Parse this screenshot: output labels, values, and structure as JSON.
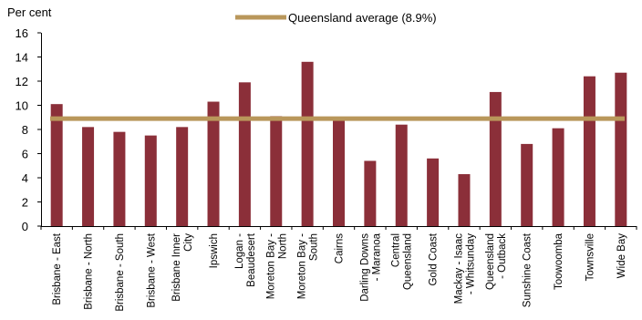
{
  "chart_data": {
    "type": "bar",
    "ylabel": "Per cent",
    "ylim": [
      0,
      16
    ],
    "yticks": [
      0,
      2,
      4,
      6,
      8,
      10,
      12,
      14,
      16
    ],
    "grid": false,
    "legend_position": "top-center",
    "categories": [
      "Brisbane - East",
      "Brisbane - North",
      "Brisbane - South",
      "Brisbane - West",
      "Brisbane Inner City",
      "Ipswich",
      "Logan - Beaudesert",
      "Moreton Bay - North",
      "Moreton Bay - South",
      "Cairns",
      "Darling Downs - Maranoa",
      "Central Queensland",
      "Gold Coast",
      "Mackay - Isaac - Whitsunday",
      "Queensland - Outback",
      "Sunshine Coast",
      "Toowoomba",
      "Townsville",
      "Wide Bay"
    ],
    "category_label_lines": [
      [
        "Brisbane - East"
      ],
      [
        "Brisbane - North"
      ],
      [
        "Brisbane - South"
      ],
      [
        "Brisbane - West"
      ],
      [
        "Brisbane Inner",
        "City"
      ],
      [
        "Ipswich"
      ],
      [
        "Logan -",
        "Beaudesert"
      ],
      [
        "Moreton Bay -",
        "North"
      ],
      [
        "Moreton Bay -",
        "South"
      ],
      [
        "Cairns"
      ],
      [
        "Darling Downs",
        "- Maranoa"
      ],
      [
        "Central",
        "Queensland"
      ],
      [
        "Gold Coast"
      ],
      [
        "Mackay - Isaac",
        "- Whitsunday"
      ],
      [
        "Queensland",
        "- Outback"
      ],
      [
        "Sunshine Coast"
      ],
      [
        "Toowoomba"
      ],
      [
        "Townsville"
      ],
      [
        "Wide Bay"
      ]
    ],
    "values": [
      10.1,
      8.2,
      7.8,
      7.5,
      8.2,
      10.3,
      11.9,
      9.1,
      13.6,
      8.9,
      5.4,
      8.4,
      5.6,
      4.3,
      11.1,
      6.8,
      8.1,
      12.4,
      12.7
    ],
    "reference_line": {
      "name": "Queensland average (8.9%)",
      "value": 8.9
    },
    "colors": {
      "bars": "#8b2f39",
      "average_line": "#b9975b"
    }
  }
}
